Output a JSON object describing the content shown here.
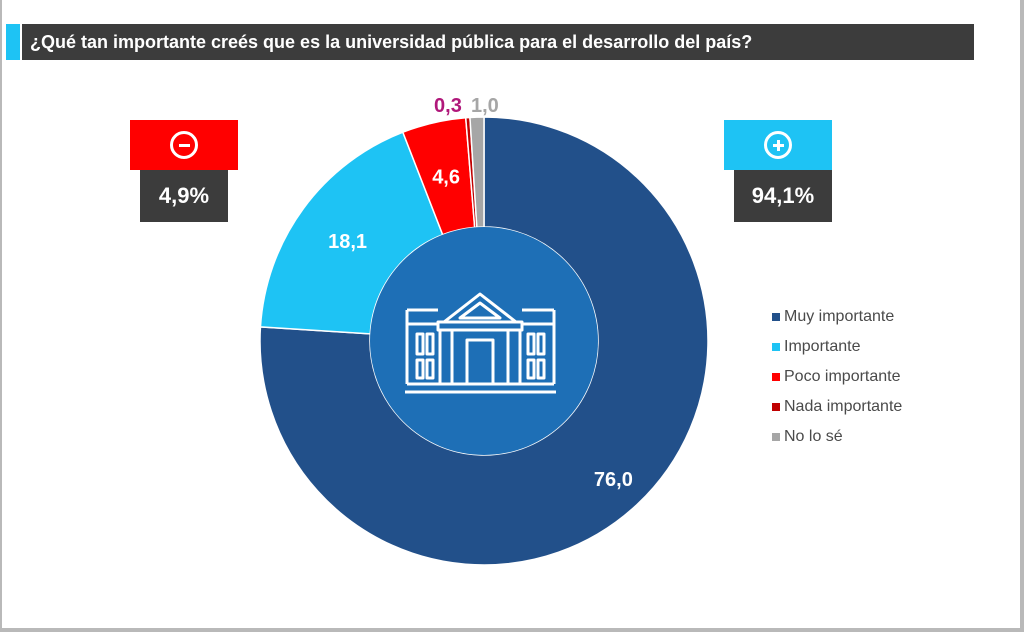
{
  "title": "¿Qué tan importante creés que es la universidad pública para el desarrollo del país?",
  "summary": {
    "negative": {
      "value": "4,9%",
      "icon": "minus-icon",
      "color": "#ff0000"
    },
    "positive": {
      "value": "94,1%",
      "icon": "plus-icon",
      "color": "#1ec3f4"
    }
  },
  "center_icon": "university-building-icon",
  "chart_data": {
    "type": "pie",
    "variant": "donut",
    "title": "¿Qué tan importante creés que es la universidad pública para el desarrollo del país?",
    "categories": [
      "Muy importante",
      "Importante",
      "Poco importante",
      "Nada importante",
      "No lo sé"
    ],
    "values": [
      76.0,
      18.1,
      4.6,
      0.3,
      1.0
    ],
    "labels": [
      "76,0",
      "18,1",
      "4,6",
      "0,3",
      "1,0"
    ],
    "colors": [
      "#22508a",
      "#1ec3f4",
      "#ff0000",
      "#c00000",
      "#a6a6a6"
    ],
    "label_colors": [
      "#ffffff",
      "#ffffff",
      "#ffffff",
      "#b0177a",
      "#a6a6a6"
    ],
    "legend_position": "right"
  }
}
